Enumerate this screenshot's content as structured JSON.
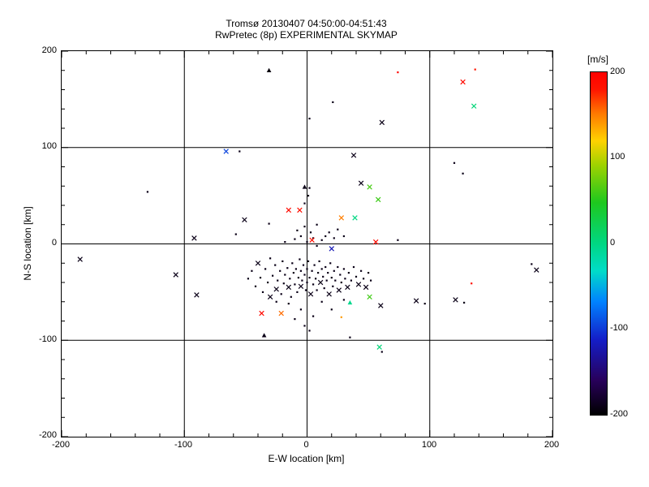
{
  "title": {
    "line1": "Tromsø 20130407 04:50:00-04:51:43",
    "line2": "RwPretec (8p) EXPERIMENTAL SKYMAP"
  },
  "axes": {
    "xlabel": "E-W location [km]",
    "ylabel": "N-S location [km]",
    "x_ticks": [
      "-200",
      "-100",
      "0",
      "100",
      "200"
    ],
    "y_ticks": [
      "200",
      "100",
      "0",
      "-100",
      "-200"
    ],
    "grid_lines": [
      -100,
      0,
      100
    ]
  },
  "colorbar": {
    "label": "[m/s]",
    "ticks": [
      "200",
      "100",
      "0",
      "-100",
      "-200"
    ],
    "min": -200,
    "max": 200
  },
  "chart_data": {
    "type": "scatter",
    "title": "Tromsø 20130407 04:50:00-04:51:43 / RwPretec (8p) EXPERIMENTAL SKYMAP",
    "xlabel": "E-W location [km]",
    "ylabel": "N-S location [km]",
    "xlim": [
      -200,
      200
    ],
    "ylim": [
      -200,
      200
    ],
    "grid": true,
    "colorbar": {
      "label": "[m/s]",
      "min": -200,
      "max": 200
    },
    "points": [
      [
        -48,
        -36,
        -190,
        "."
      ],
      [
        -45,
        -28,
        -190,
        "."
      ],
      [
        -42,
        -44,
        -190,
        "."
      ],
      [
        -40,
        -20,
        -190,
        "x"
      ],
      [
        -38,
        -35,
        -190,
        "."
      ],
      [
        -36,
        -50,
        -190,
        "."
      ],
      [
        -34,
        -26,
        -190,
        "."
      ],
      [
        -32,
        -40,
        -190,
        "."
      ],
      [
        -30,
        -15,
        -190,
        "."
      ],
      [
        -30,
        -55,
        -190,
        "x"
      ],
      [
        -28,
        -33,
        -190,
        "."
      ],
      [
        -26,
        -22,
        -190,
        "."
      ],
      [
        -25,
        -47,
        -190,
        "x"
      ],
      [
        -24,
        -38,
        -190,
        "."
      ],
      [
        -22,
        -28,
        -190,
        "."
      ],
      [
        -21,
        -52,
        -190,
        "."
      ],
      [
        -20,
        -18,
        -190,
        "."
      ],
      [
        -19,
        -41,
        -190,
        "."
      ],
      [
        -18,
        -32,
        -190,
        "."
      ],
      [
        -16,
        -25,
        -190,
        "."
      ],
      [
        -15,
        -45,
        -190,
        "x"
      ],
      [
        -14,
        -36,
        -190,
        "."
      ],
      [
        -13,
        -55,
        -190,
        "."
      ],
      [
        -12,
        -20,
        -190,
        "."
      ],
      [
        -11,
        -30,
        -190,
        "."
      ],
      [
        -10,
        -42,
        -190,
        "."
      ],
      [
        -9,
        -26,
        -190,
        "."
      ],
      [
        -8,
        -50,
        -190,
        "."
      ],
      [
        -7,
        -35,
        -190,
        "."
      ],
      [
        -6,
        -16,
        -190,
        "."
      ],
      [
        -5,
        -28,
        -190,
        "."
      ],
      [
        -5,
        -44,
        -190,
        "x"
      ],
      [
        -4,
        -38,
        -190,
        "."
      ],
      [
        -3,
        -22,
        -190,
        "."
      ],
      [
        -2,
        -32,
        -190,
        "."
      ],
      [
        -1,
        -48,
        -190,
        "."
      ],
      [
        0,
        -26,
        -190,
        "."
      ],
      [
        0,
        -40,
        -190,
        "."
      ],
      [
        1,
        -18,
        -190,
        "."
      ],
      [
        2,
        -35,
        -190,
        "."
      ],
      [
        3,
        -52,
        -190,
        "x"
      ],
      [
        4,
        -28,
        -190,
        "."
      ],
      [
        5,
        -42,
        -190,
        "."
      ],
      [
        6,
        -22,
        -190,
        "."
      ],
      [
        7,
        -36,
        -190,
        "."
      ],
      [
        8,
        -48,
        -190,
        "."
      ],
      [
        9,
        -30,
        -190,
        "."
      ],
      [
        10,
        -18,
        -190,
        "."
      ],
      [
        11,
        -40,
        -190,
        "x"
      ],
      [
        12,
        -26,
        -190,
        "."
      ],
      [
        13,
        -34,
        -190,
        "."
      ],
      [
        14,
        -46,
        -190,
        "."
      ],
      [
        15,
        -24,
        -190,
        "."
      ],
      [
        16,
        -38,
        -190,
        "."
      ],
      [
        17,
        -30,
        -190,
        "."
      ],
      [
        18,
        -52,
        -190,
        "x"
      ],
      [
        19,
        -20,
        -190,
        "."
      ],
      [
        20,
        -35,
        -190,
        "."
      ],
      [
        21,
        -44,
        -190,
        "."
      ],
      [
        22,
        -28,
        -190,
        "."
      ],
      [
        23,
        -38,
        -190,
        "."
      ],
      [
        25,
        -24,
        -190,
        "."
      ],
      [
        26,
        -48,
        -190,
        "x"
      ],
      [
        27,
        -32,
        -190,
        "."
      ],
      [
        28,
        -40,
        -190,
        "."
      ],
      [
        30,
        -26,
        -190,
        "."
      ],
      [
        31,
        -36,
        -190,
        "."
      ],
      [
        33,
        -45,
        -190,
        "x"
      ],
      [
        34,
        -30,
        -190,
        "."
      ],
      [
        36,
        -38,
        -190,
        "."
      ],
      [
        38,
        -24,
        -190,
        "."
      ],
      [
        40,
        -34,
        -190,
        "."
      ],
      [
        42,
        -42,
        -190,
        "x"
      ],
      [
        44,
        -28,
        -190,
        "."
      ],
      [
        46,
        -36,
        -190,
        "."
      ],
      [
        48,
        -45,
        -190,
        "x"
      ],
      [
        50,
        -30,
        -190,
        "."
      ],
      [
        52,
        -38,
        -190,
        "."
      ],
      [
        -18,
        2,
        -190,
        "."
      ],
      [
        -10,
        5,
        -190,
        "."
      ],
      [
        -5,
        8,
        -190,
        "."
      ],
      [
        0,
        2,
        -190,
        "."
      ],
      [
        5,
        6,
        -190,
        "."
      ],
      [
        8,
        -2,
        -190,
        "."
      ],
      [
        12,
        4,
        -190,
        "."
      ],
      [
        15,
        8,
        -190,
        "."
      ],
      [
        3,
        12,
        -190,
        "."
      ],
      [
        -2,
        18,
        -190,
        "."
      ],
      [
        8,
        20,
        -190,
        "."
      ],
      [
        -8,
        14,
        -190,
        "."
      ],
      [
        18,
        12,
        -190,
        "."
      ],
      [
        22,
        6,
        -190,
        "."
      ],
      [
        25,
        15,
        -190,
        "."
      ],
      [
        30,
        8,
        -190,
        "."
      ],
      [
        -2,
        42,
        -190,
        "."
      ],
      [
        1,
        50,
        -190,
        "."
      ],
      [
        2,
        58,
        -190,
        "."
      ],
      [
        -15,
        -62,
        -190,
        "."
      ],
      [
        -5,
        -68,
        -190,
        "."
      ],
      [
        5,
        -75,
        -190,
        "."
      ],
      [
        12,
        -60,
        -190,
        "."
      ],
      [
        20,
        -68,
        -190,
        "."
      ],
      [
        -25,
        -60,
        -190,
        "."
      ],
      [
        30,
        -58,
        -190,
        "."
      ],
      [
        -2,
        -85,
        -190,
        "."
      ],
      [
        2,
        -90,
        -190,
        "."
      ],
      [
        -10,
        -78,
        -190,
        "."
      ],
      [
        -31,
        180,
        -195,
        "t"
      ],
      [
        74,
        178,
        195,
        "."
      ],
      [
        127,
        168,
        190,
        "x"
      ],
      [
        137,
        181,
        180,
        "."
      ],
      [
        21,
        147,
        -190,
        "."
      ],
      [
        136,
        143,
        5,
        "x"
      ],
      [
        61,
        126,
        -190,
        "x"
      ],
      [
        2,
        130,
        -190,
        "."
      ],
      [
        -66,
        96,
        -95,
        "x"
      ],
      [
        -55,
        96,
        -190,
        "."
      ],
      [
        38,
        92,
        -190,
        "x"
      ],
      [
        120,
        84,
        -190,
        "."
      ],
      [
        127,
        73,
        -190,
        "."
      ],
      [
        -130,
        54,
        -190,
        "."
      ],
      [
        -2,
        59,
        -190,
        "t"
      ],
      [
        44,
        63,
        -190,
        "x"
      ],
      [
        51,
        59,
        62,
        "x"
      ],
      [
        58,
        46,
        58,
        "x"
      ],
      [
        39,
        27,
        0,
        "x"
      ],
      [
        -15,
        35,
        190,
        "x"
      ],
      [
        -6,
        35,
        185,
        "x"
      ],
      [
        28,
        27,
        150,
        "x"
      ],
      [
        -51,
        25,
        -190,
        "x"
      ],
      [
        -31,
        21,
        -190,
        "."
      ],
      [
        56,
        2,
        190,
        "x"
      ],
      [
        74,
        4,
        -190,
        "."
      ],
      [
        -92,
        6,
        -190,
        "x"
      ],
      [
        -58,
        10,
        -190,
        "."
      ],
      [
        4,
        4,
        185,
        "x"
      ],
      [
        20,
        -5,
        -120,
        "x"
      ],
      [
        -185,
        -16,
        -190,
        "x"
      ],
      [
        -107,
        -32,
        -190,
        "x"
      ],
      [
        183,
        -21,
        -190,
        "."
      ],
      [
        187,
        -27,
        -190,
        "x"
      ],
      [
        134,
        -41,
        185,
        "."
      ],
      [
        121,
        -58,
        -190,
        "x"
      ],
      [
        128,
        -61,
        -190,
        "."
      ],
      [
        -90,
        -53,
        -190,
        "x"
      ],
      [
        -37,
        -72,
        190,
        "x"
      ],
      [
        -21,
        -72,
        155,
        "x"
      ],
      [
        51,
        -55,
        60,
        "x"
      ],
      [
        35,
        -61,
        -5,
        "t"
      ],
      [
        60,
        -64,
        -190,
        "x"
      ],
      [
        89,
        -59,
        -190,
        "x"
      ],
      [
        96,
        -62,
        -190,
        "."
      ],
      [
        -35,
        -95,
        -190,
        "t"
      ],
      [
        35,
        -97,
        -190,
        "."
      ],
      [
        59,
        -107,
        5,
        "x"
      ],
      [
        61,
        -112,
        -190,
        "."
      ],
      [
        28,
        -76,
        140,
        "."
      ]
    ]
  }
}
